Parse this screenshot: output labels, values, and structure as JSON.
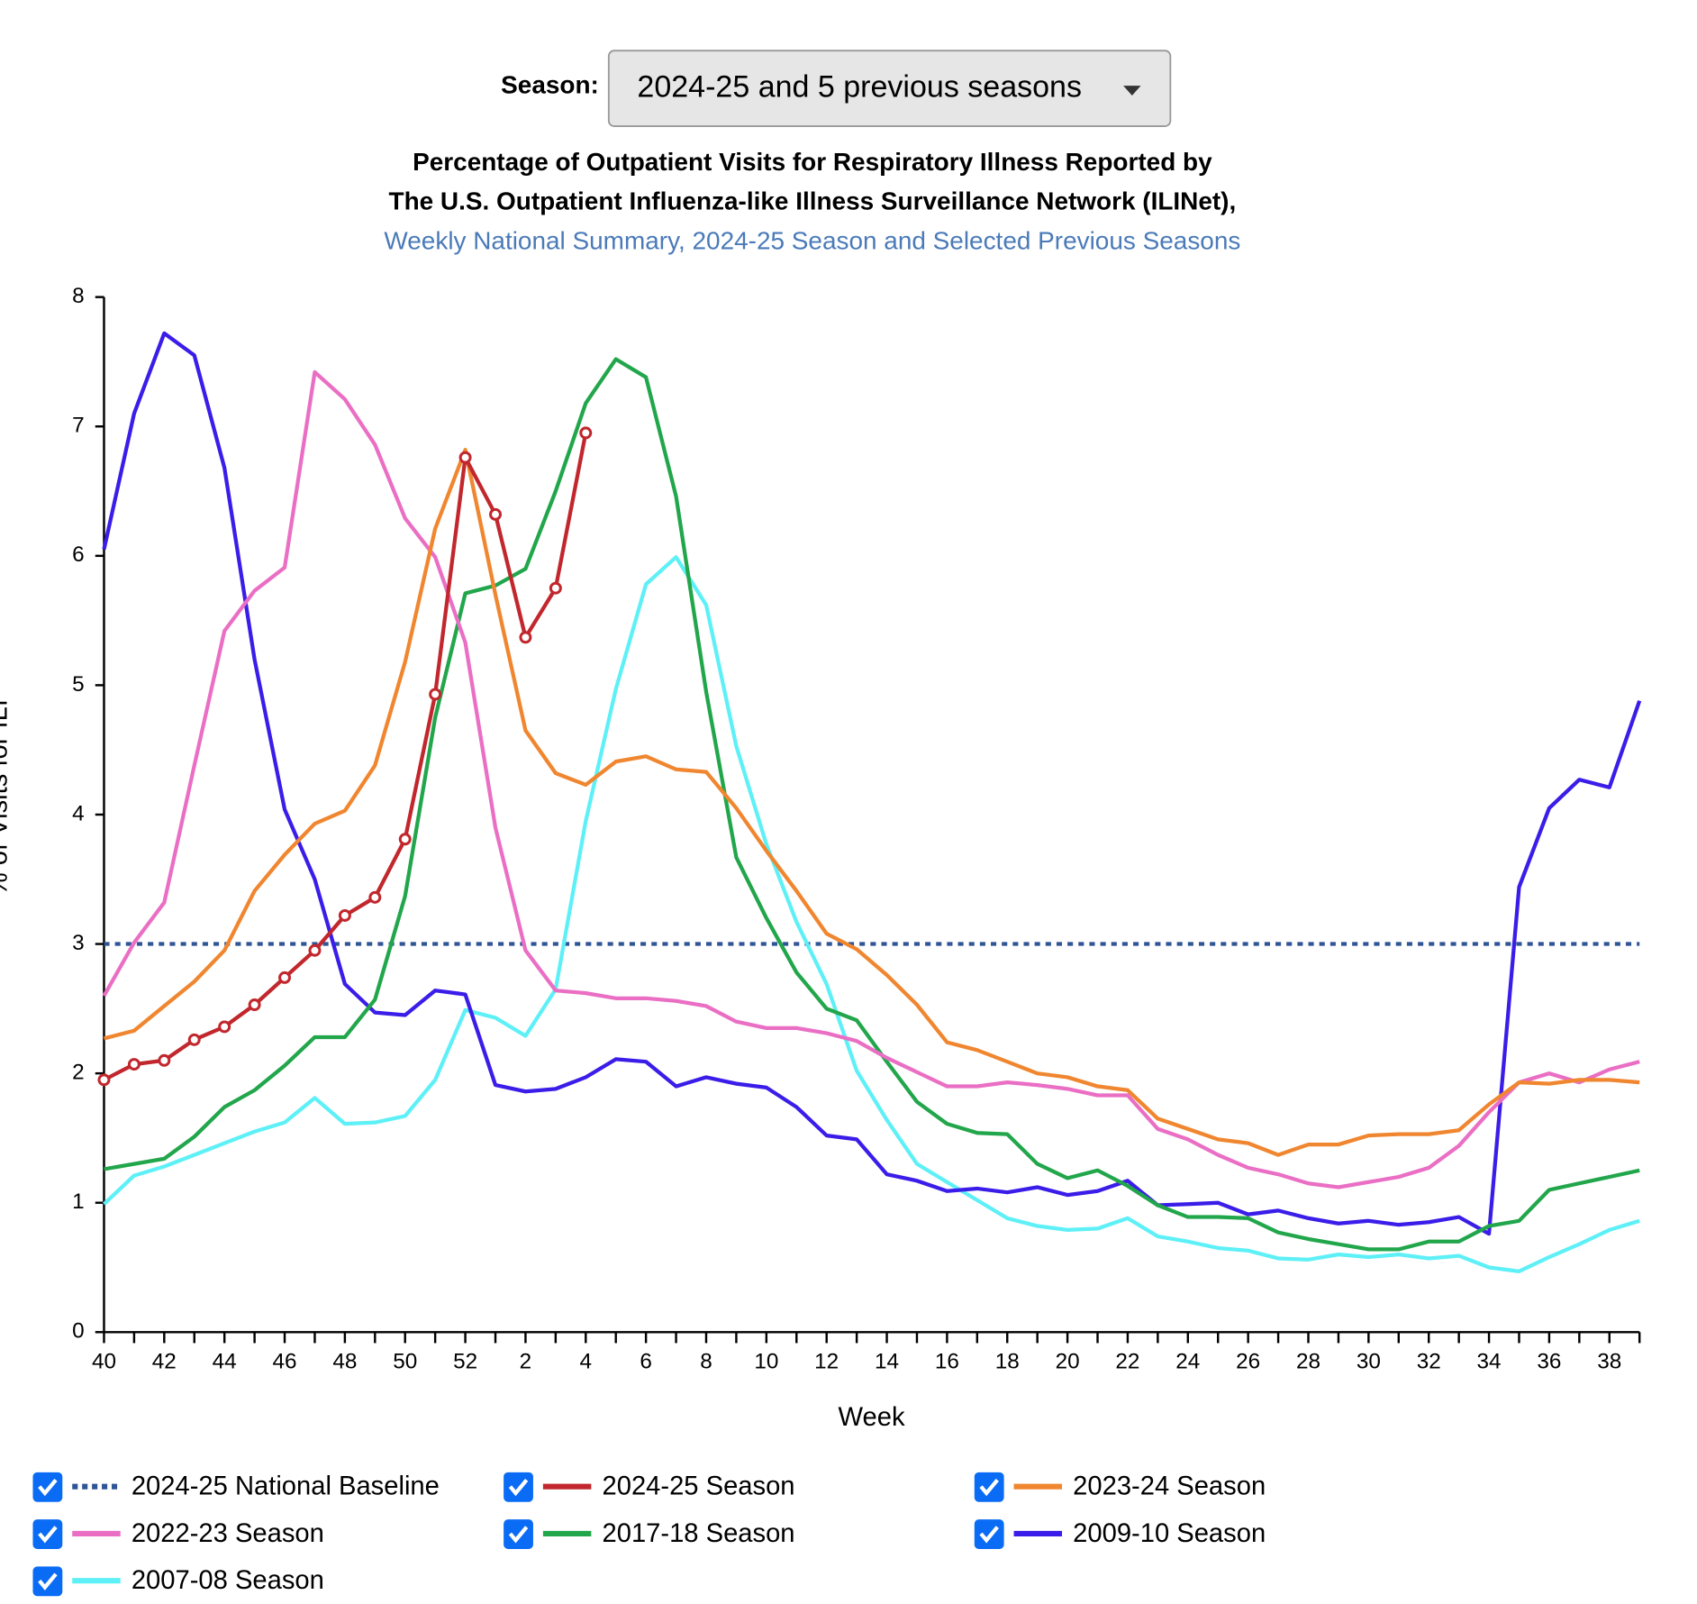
{
  "season_label": "Season:",
  "season_value": "2024-25 and 5 previous seasons",
  "chart_data": {
    "type": "line",
    "title": "Percentage of Outpatient Visits for Respiratory Illness Reported by",
    "title_line2": "The U.S. Outpatient Influenza-like Illness Surveillance Network (ILINet),",
    "subtitle": "Weekly National Summary, 2024-25 Season and Selected Previous Seasons",
    "x_label": "Week",
    "y_label": "% of Visits for ILI",
    "categories": [
      40,
      null,
      42,
      null,
      44,
      null,
      46,
      null,
      48,
      null,
      50,
      null,
      52,
      null,
      2,
      null,
      4,
      null,
      6,
      null,
      8,
      null,
      10,
      null,
      12,
      null,
      14,
      null,
      16,
      null,
      18,
      null,
      20,
      null,
      22,
      null,
      24,
      null,
      26,
      null,
      28,
      null,
      30,
      null,
      32,
      null,
      34,
      null,
      36,
      null,
      38,
      null
    ],
    "ylim": [
      0,
      8
    ],
    "yticks": [
      0,
      1,
      2,
      3,
      4,
      5,
      6,
      7,
      8
    ],
    "baseline": {
      "name": "2024-25 National Baseline",
      "color": "#2f5597",
      "value": 3
    },
    "series": [
      {
        "name": "2024-25 Season",
        "color": "#c1272d",
        "markers": true,
        "values": [
          1.95,
          2.07,
          2.1,
          2.26,
          2.36,
          2.53,
          2.74,
          2.95,
          3.22,
          3.36,
          3.81,
          4.93,
          6.76,
          6.32,
          5.37,
          5.75,
          6.95,
          null,
          null,
          null,
          null,
          null,
          null,
          null,
          null,
          null,
          null,
          null,
          null,
          null,
          null,
          null,
          null,
          null,
          null,
          null,
          null,
          null,
          null,
          null,
          null,
          null,
          null,
          null,
          null,
          null,
          null,
          null,
          null,
          null,
          null,
          null
        ]
      },
      {
        "name": "2023-24 Season",
        "color": "#f0862f",
        "values": [
          2.27,
          2.33,
          2.52,
          2.71,
          2.95,
          3.41,
          3.69,
          3.93,
          4.03,
          4.38,
          5.18,
          6.21,
          6.82,
          5.7,
          4.65,
          4.32,
          4.23,
          4.41,
          4.45,
          4.35,
          4.33,
          4.05,
          3.72,
          3.41,
          3.08,
          2.96,
          2.76,
          2.53,
          2.24,
          2.18,
          2.09,
          2.0,
          1.97,
          1.9,
          1.87,
          1.65,
          1.57,
          1.49,
          1.46,
          1.37,
          1.45,
          1.45,
          1.52,
          1.53,
          1.53,
          1.56,
          1.76,
          1.93,
          1.92,
          1.95,
          1.95,
          1.93
        ]
      },
      {
        "name": "2022-23 Season",
        "color": "#ea6fc4",
        "values": [
          2.6,
          3.01,
          3.32,
          4.38,
          5.42,
          5.73,
          5.91,
          7.42,
          7.21,
          6.86,
          6.29,
          5.99,
          5.33,
          3.9,
          2.95,
          2.64,
          2.62,
          2.58,
          2.58,
          2.56,
          2.52,
          2.4,
          2.35,
          2.35,
          2.31,
          2.25,
          2.12,
          2.01,
          1.9,
          1.9,
          1.93,
          1.91,
          1.88,
          1.83,
          1.83,
          1.57,
          1.49,
          1.37,
          1.27,
          1.22,
          1.15,
          1.12,
          1.16,
          1.2,
          1.27,
          1.44,
          1.7,
          1.93,
          2.0,
          1.93,
          2.03,
          2.09
        ]
      },
      {
        "name": "2017-18 Season",
        "color": "#22a64b",
        "values": [
          1.26,
          1.3,
          1.34,
          1.51,
          1.74,
          1.87,
          2.06,
          2.28,
          2.28,
          2.57,
          3.37,
          4.75,
          5.71,
          5.77,
          5.9,
          6.5,
          7.18,
          7.52,
          7.38,
          6.46,
          4.95,
          3.67,
          3.2,
          2.78,
          2.5,
          2.41,
          2.09,
          1.78,
          1.61,
          1.54,
          1.53,
          1.3,
          1.19,
          1.25,
          1.13,
          0.98,
          0.89,
          0.89,
          0.88,
          0.77,
          0.72,
          0.68,
          0.64,
          0.64,
          0.7,
          0.7,
          0.82,
          0.86,
          1.1,
          1.15,
          1.2,
          1.25
        ]
      },
      {
        "name": "2009-10 Season",
        "color": "#3a1de8",
        "values": [
          6.05,
          7.1,
          7.72,
          7.55,
          6.68,
          5.2,
          4.04,
          3.5,
          2.69,
          2.47,
          2.45,
          2.64,
          2.61,
          1.91,
          1.86,
          1.88,
          1.97,
          2.11,
          2.09,
          1.9,
          1.97,
          1.92,
          1.89,
          1.74,
          1.52,
          1.49,
          1.22,
          1.17,
          1.09,
          1.11,
          1.08,
          1.12,
          1.06,
          1.09,
          1.17,
          0.98,
          0.99,
          1.0,
          0.91,
          0.94,
          0.88,
          0.84,
          0.86,
          0.83,
          0.85,
          0.89,
          0.76,
          3.44,
          4.05,
          4.27,
          4.21,
          4.88
        ]
      },
      {
        "name": "2007-08 Season",
        "color": "#5ef0f7",
        "values": [
          0.99,
          1.21,
          1.28,
          1.37,
          1.46,
          1.55,
          1.62,
          1.81,
          1.61,
          1.62,
          1.67,
          1.95,
          2.49,
          2.43,
          2.29,
          2.65,
          3.95,
          4.97,
          5.78,
          5.99,
          5.62,
          4.53,
          3.77,
          3.17,
          2.69,
          2.02,
          1.64,
          1.3,
          1.16,
          1.02,
          0.88,
          0.82,
          0.79,
          0.8,
          0.88,
          0.74,
          0.7,
          0.65,
          0.63,
          0.57,
          0.56,
          0.6,
          0.58,
          0.6,
          0.57,
          0.59,
          0.5,
          0.47,
          0.58,
          0.68,
          0.79,
          0.86
        ]
      }
    ]
  }
}
